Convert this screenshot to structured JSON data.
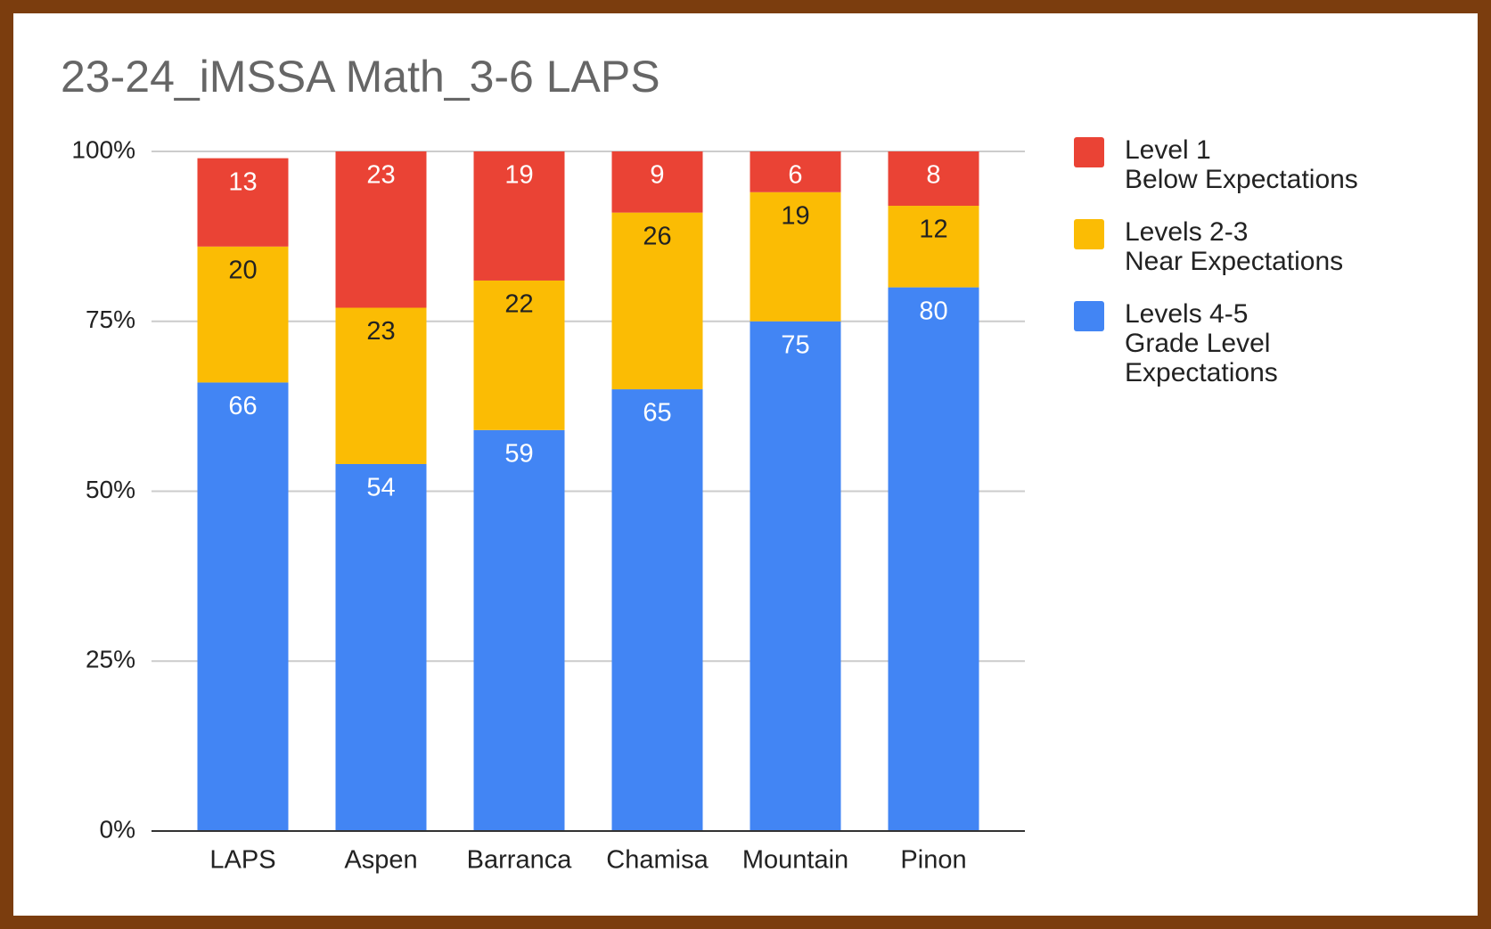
{
  "chart_data": {
    "type": "stacked_bar",
    "title": "23-24_iMSSA Math_3-6 LAPS",
    "categories": [
      "LAPS",
      "Aspen",
      "Barranca",
      "Chamisa",
      "Mountain",
      "Pinon"
    ],
    "series": [
      {
        "name": "Levels 4-5\nGrade Level\nExpectations",
        "color": "#4285f4",
        "values": [
          66,
          54,
          59,
          65,
          75,
          80
        ]
      },
      {
        "name": "Levels 2-3\nNear Expectations",
        "color": "#fbbc04",
        "values": [
          20,
          23,
          22,
          26,
          19,
          12
        ]
      },
      {
        "name": "Level 1\nBelow Expectations",
        "color": "#ea4335",
        "values": [
          13,
          23,
          19,
          9,
          6,
          8
        ]
      }
    ],
    "ylim": [
      0,
      100
    ],
    "yticks": [
      {
        "value": 0,
        "label": "0%"
      },
      {
        "value": 25,
        "label": "25%"
      },
      {
        "value": 50,
        "label": "50%"
      },
      {
        "value": 75,
        "label": "75%"
      },
      {
        "value": 100,
        "label": "100%"
      }
    ],
    "grid": true
  }
}
